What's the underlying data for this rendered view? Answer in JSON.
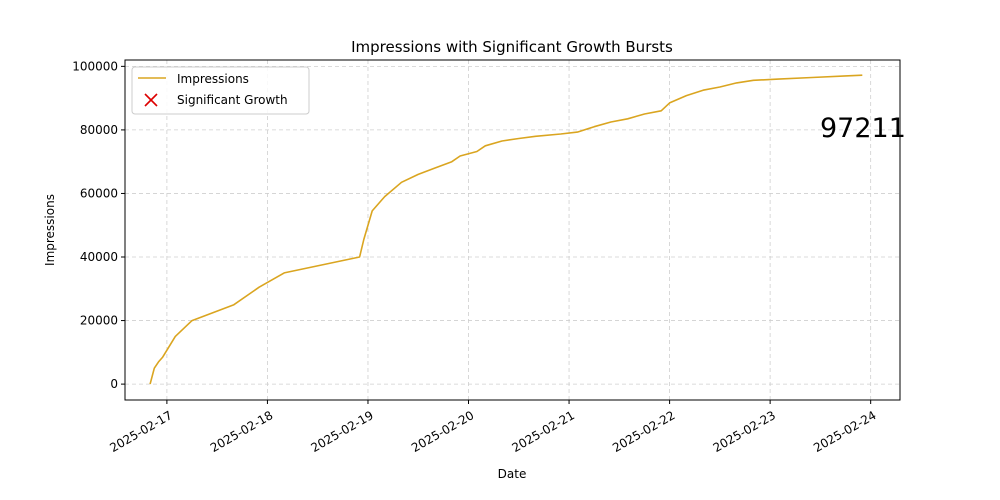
{
  "chart_data": {
    "type": "line",
    "title": "Impressions with Significant Growth Bursts",
    "xlabel": "Date",
    "ylabel": "Impressions",
    "x_ticks": [
      "2025-02-17",
      "2025-02-18",
      "2025-02-19",
      "2025-02-20",
      "2025-02-21",
      "2025-02-22",
      "2025-02-23",
      "2025-02-24"
    ],
    "y_ticks": [
      "0",
      "20000",
      "40000",
      "60000",
      "80000",
      "100000"
    ],
    "ylim": [
      -5000,
      102000
    ],
    "xlim": [
      "2025-02-16T14:00",
      "2025-02-24T07:00"
    ],
    "grid": true,
    "legend_position": "upper-left",
    "legend": [
      {
        "label": "Impressions",
        "marker": "line",
        "color": "#DAA520"
      },
      {
        "label": "Significant Growth",
        "marker": "x",
        "color": "#dd0000"
      }
    ],
    "annotation": "97211",
    "series": [
      {
        "name": "Impressions",
        "color": "#DAA520",
        "points": [
          [
            "2025-02-16T20:00",
            0
          ],
          [
            "2025-02-16T21:00",
            5000
          ],
          [
            "2025-02-16T22:00",
            7000
          ],
          [
            "2025-02-16T23:00",
            8500
          ],
          [
            "2025-02-17T02:00",
            15000
          ],
          [
            "2025-02-17T06:00",
            20000
          ],
          [
            "2025-02-17T16:00",
            25000
          ],
          [
            "2025-02-17T22:00",
            30500
          ],
          [
            "2025-02-18T04:00",
            35000
          ],
          [
            "2025-02-18T22:00",
            40000
          ],
          [
            "2025-02-18T23:00",
            45500
          ],
          [
            "2025-02-19T01:00",
            54500
          ],
          [
            "2025-02-19T04:00",
            59000
          ],
          [
            "2025-02-19T08:00",
            63500
          ],
          [
            "2025-02-19T12:00",
            66000
          ],
          [
            "2025-02-19T16:00",
            68000
          ],
          [
            "2025-02-19T20:00",
            70000
          ],
          [
            "2025-02-19T22:00",
            71800
          ],
          [
            "2025-02-20T02:00",
            73200
          ],
          [
            "2025-02-20T04:00",
            75000
          ],
          [
            "2025-02-20T08:00",
            76500
          ],
          [
            "2025-02-20T12:00",
            77300
          ],
          [
            "2025-02-20T16:00",
            78000
          ],
          [
            "2025-02-20T22:00",
            78700
          ],
          [
            "2025-02-21T02:00",
            79300
          ],
          [
            "2025-02-21T06:00",
            81000
          ],
          [
            "2025-02-21T10:00",
            82500
          ],
          [
            "2025-02-21T14:00",
            83500
          ],
          [
            "2025-02-21T18:00",
            85000
          ],
          [
            "2025-02-21T22:00",
            86000
          ],
          [
            "2025-02-22T00:00",
            88500
          ],
          [
            "2025-02-22T04:00",
            90800
          ],
          [
            "2025-02-22T08:00",
            92500
          ],
          [
            "2025-02-22T12:00",
            93500
          ],
          [
            "2025-02-22T16:00",
            94800
          ],
          [
            "2025-02-22T20:00",
            95600
          ],
          [
            "2025-02-23T02:00",
            96000
          ],
          [
            "2025-02-23T10:00",
            96500
          ],
          [
            "2025-02-23T18:00",
            97000
          ],
          [
            "2025-02-23T22:00",
            97211
          ]
        ]
      }
    ]
  }
}
